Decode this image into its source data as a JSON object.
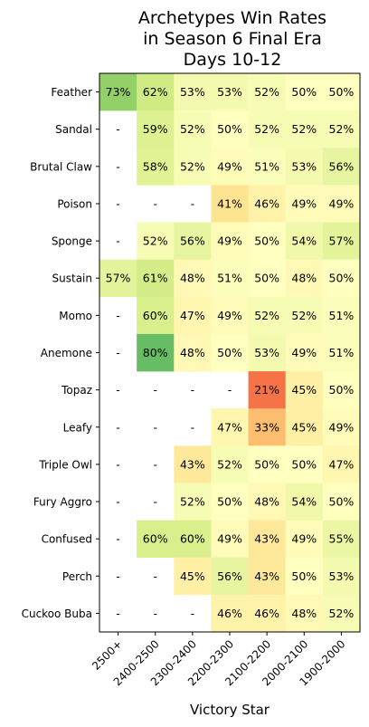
{
  "chart_data": {
    "type": "heatmap",
    "title_lines": [
      "Archetypes Win Rates",
      "in Season 6 Final Era",
      "Days 10-12"
    ],
    "xlabel": "Victory Star",
    "x_categories": [
      "2500+",
      "2400-2500",
      "2300-2400",
      "2200-2300",
      "2100-2200",
      "2000-2100",
      "1900-2000"
    ],
    "y_categories": [
      "Feather",
      "Sandal",
      "Brutal Claw",
      "Poison",
      "Sponge",
      "Sustain",
      "Momo",
      "Anemone",
      "Topaz",
      "Leafy",
      "Triple Owl",
      "Fury Aggro",
      "Confused",
      "Perch",
      "Cuckoo Buba"
    ],
    "values": [
      [
        73,
        62,
        53,
        53,
        52,
        50,
        50
      ],
      [
        null,
        59,
        52,
        50,
        52,
        52,
        52
      ],
      [
        null,
        58,
        52,
        49,
        51,
        53,
        56
      ],
      [
        null,
        null,
        null,
        41,
        46,
        49,
        49
      ],
      [
        null,
        52,
        56,
        49,
        50,
        54,
        57
      ],
      [
        57,
        61,
        48,
        51,
        50,
        48,
        50
      ],
      [
        null,
        60,
        47,
        49,
        52,
        52,
        51
      ],
      [
        null,
        80,
        48,
        50,
        53,
        49,
        51
      ],
      [
        null,
        null,
        null,
        null,
        21,
        45,
        50
      ],
      [
        null,
        null,
        null,
        47,
        33,
        45,
        49
      ],
      [
        null,
        null,
        43,
        52,
        50,
        50,
        47
      ],
      [
        null,
        null,
        52,
        50,
        48,
        54,
        50
      ],
      [
        null,
        60,
        60,
        49,
        43,
        49,
        55
      ],
      [
        null,
        null,
        45,
        56,
        43,
        50,
        53
      ],
      [
        null,
        null,
        null,
        46,
        46,
        48,
        52
      ]
    ],
    "value_suffix": "%",
    "missing_label": "-",
    "colormap": "RdYlGn",
    "color_range": [
      0,
      100
    ]
  }
}
